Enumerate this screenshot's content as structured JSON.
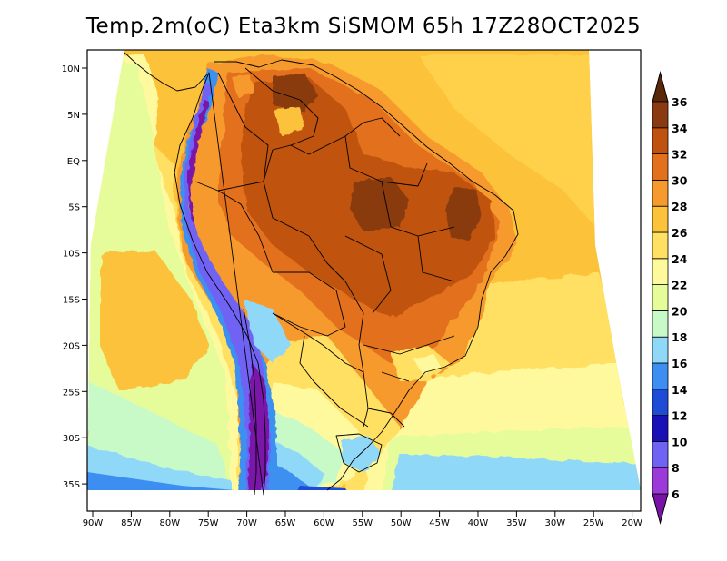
{
  "title": "Temp.2m(oC) Eta3km SiSMOM 65h 17Z28OCT2025",
  "map": {
    "variable": "2 m temperature",
    "units": "oC",
    "region": "South America"
  },
  "axes": {
    "lat_ticks": [
      "10N",
      "5N",
      "EQ",
      "5S",
      "10S",
      "15S",
      "20S",
      "25S",
      "30S",
      "35S"
    ],
    "lon_ticks": [
      "90W",
      "85W",
      "80W",
      "75W",
      "70W",
      "65W",
      "60W",
      "55W",
      "50W",
      "45W",
      "40W",
      "35W",
      "30W",
      "25W",
      "20W"
    ]
  },
  "colorbar": {
    "levels": [
      "6",
      "8",
      "10",
      "12",
      "14",
      "16",
      "18",
      "20",
      "22",
      "24",
      "26",
      "28",
      "30",
      "32",
      "34",
      "36"
    ],
    "colors": [
      "#7a12a8",
      "#9b3ad8",
      "#6f63f4",
      "#1a10b8",
      "#1e4cd6",
      "#3c8ff0",
      "#90d8f8",
      "#c8fac8",
      "#e6fc9a",
      "#fff99e",
      "#ffe062",
      "#fcc23a",
      "#f69a2e",
      "#e2701d",
      "#c0520f",
      "#8a3a10",
      "#5a2808"
    ]
  }
}
